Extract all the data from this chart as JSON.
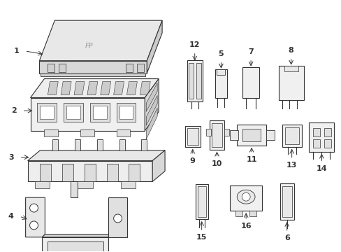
{
  "background_color": "#ffffff",
  "line_color": "#333333",
  "fig_width": 4.89,
  "fig_height": 3.6,
  "dpi": 100
}
